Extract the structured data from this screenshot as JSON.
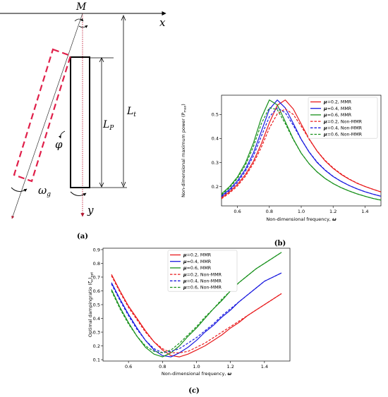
{
  "captions": {
    "a": "(a)",
    "b": "(b)",
    "c": "(c)"
  },
  "diagram": {
    "label_M": "M",
    "label_x": "x",
    "label_y": "y",
    "label_Lt": "L",
    "label_Lt_sub": "t",
    "label_Lp": "L",
    "label_Lp_sub": "P",
    "label_phi": "φ",
    "label_omega": "ω",
    "label_omega_sub": "g",
    "colors": {
      "pendulum": "#e0204a",
      "frame": "#000000",
      "axis": "#c0203a"
    }
  },
  "chart_data": [
    {
      "id": "b",
      "type": "line",
      "xlabel_text": "Non-dimensional frequency, ",
      "xlabel_sym": "ω",
      "ylabel": "Non-dimensional maximum power (P",
      "ylabel_sub": "max",
      "ylabel_end": ")",
      "xlim": [
        0.5,
        1.5
      ],
      "ylim": [
        0.12,
        0.58
      ],
      "xticks": [
        "0.6",
        "0.8",
        "1.0",
        "1.2",
        "1.4"
      ],
      "xtick_values": [
        0.6,
        0.8,
        1.0,
        1.2,
        1.4
      ],
      "yticks": [
        "0.2",
        "0.3",
        "0.4",
        "0.5"
      ],
      "ytick_values": [
        0.2,
        0.3,
        0.4,
        0.5
      ],
      "legend_position": "top-right",
      "x": [
        0.5,
        0.55,
        0.6,
        0.65,
        0.7,
        0.75,
        0.8,
        0.85,
        0.9,
        0.95,
        1.0,
        1.05,
        1.1,
        1.15,
        1.2,
        1.25,
        1.3,
        1.35,
        1.4,
        1.45,
        1.5
      ],
      "series": [
        {
          "name": "=0.2, MMR",
          "prefix": "μ",
          "color": "#e8191b",
          "dash": false,
          "values": [
            0.154,
            0.178,
            0.209,
            0.25,
            0.305,
            0.378,
            0.465,
            0.538,
            0.56,
            0.523,
            0.46,
            0.398,
            0.347,
            0.307,
            0.276,
            0.251,
            0.231,
            0.214,
            0.201,
            0.189,
            0.178
          ]
        },
        {
          "name": "=0.4, MMR",
          "prefix": "μ",
          "color": "#1a1adf",
          "dash": false,
          "values": [
            0.162,
            0.188,
            0.224,
            0.272,
            0.34,
            0.43,
            0.521,
            0.56,
            0.527,
            0.463,
            0.397,
            0.343,
            0.3,
            0.268,
            0.242,
            0.222,
            0.205,
            0.191,
            0.179,
            0.169,
            0.16
          ]
        },
        {
          "name": "=0.6, MMR",
          "prefix": "μ",
          "color": "#17901b",
          "dash": false,
          "values": [
            0.17,
            0.2,
            0.24,
            0.298,
            0.381,
            0.486,
            0.56,
            0.54,
            0.47,
            0.398,
            0.339,
            0.295,
            0.261,
            0.234,
            0.213,
            0.196,
            0.182,
            0.17,
            0.16,
            0.151,
            0.144
          ]
        },
        {
          "name": "=0.2, Non-MMR",
          "prefix": "μ",
          "color": "#e8191b",
          "dash": true,
          "values": [
            0.15,
            0.173,
            0.203,
            0.243,
            0.296,
            0.364,
            0.443,
            0.503,
            0.523,
            0.5,
            0.451,
            0.396,
            0.348,
            0.309,
            0.278,
            0.253,
            0.232,
            0.215,
            0.201,
            0.189,
            0.178
          ]
        },
        {
          "name": "=0.4, Non-MMR",
          "prefix": "μ",
          "color": "#1a1adf",
          "dash": true,
          "values": [
            0.158,
            0.183,
            0.217,
            0.264,
            0.327,
            0.41,
            0.49,
            0.527,
            0.507,
            0.455,
            0.396,
            0.344,
            0.302,
            0.269,
            0.243,
            0.222,
            0.205,
            0.191,
            0.179,
            0.169,
            0.16
          ]
        },
        {
          "name": "=0.6, Non-MMR",
          "prefix": "μ",
          "color": "#17901b",
          "dash": true,
          "values": [
            0.166,
            0.195,
            0.234,
            0.289,
            0.366,
            0.462,
            0.528,
            0.52,
            0.462,
            0.396,
            0.339,
            0.295,
            0.261,
            0.234,
            0.213,
            0.196,
            0.182,
            0.17,
            0.16,
            0.151,
            0.144
          ]
        }
      ]
    },
    {
      "id": "c",
      "type": "line",
      "xlabel_text": "Non-dimensional frequency, ",
      "xlabel_sym": "ω",
      "ylabel": "Optimal dampingratio (ζ",
      "ylabel_sub": "e",
      "ylabel_end": ")",
      "ylabel_sub2": "opt",
      "xlim": [
        0.45,
        1.55
      ],
      "ylim": [
        0.09,
        0.91
      ],
      "xticks": [
        "0.6",
        "0.8",
        "1.0",
        "1.2",
        "1.4"
      ],
      "xtick_values": [
        0.6,
        0.8,
        1.0,
        1.2,
        1.4
      ],
      "yticks": [
        "0.1",
        "0.2",
        "0.3",
        "0.4",
        "0.5",
        "0.6",
        "0.7",
        "0.8",
        "0.9"
      ],
      "ytick_values": [
        0.1,
        0.2,
        0.3,
        0.4,
        0.5,
        0.6,
        0.7,
        0.8,
        0.9
      ],
      "legend_position": "top-left",
      "x": [
        0.5,
        0.55,
        0.6,
        0.65,
        0.7,
        0.75,
        0.8,
        0.85,
        0.9,
        0.95,
        1.0,
        1.05,
        1.1,
        1.15,
        1.2,
        1.25,
        1.3,
        1.35,
        1.4,
        1.45,
        1.5
      ],
      "series": [
        {
          "name": "=0.2, MMR",
          "prefix": "μ",
          "color": "#e8191b",
          "dash": false,
          "values": [
            0.72,
            0.6,
            0.49,
            0.4,
            0.31,
            0.23,
            0.17,
            0.13,
            0.12,
            0.14,
            0.17,
            0.2,
            0.24,
            0.28,
            0.33,
            0.37,
            0.42,
            0.46,
            0.5,
            0.54,
            0.58
          ]
        },
        {
          "name": "=0.4, MMR",
          "prefix": "μ",
          "color": "#1a1adf",
          "dash": false,
          "values": [
            0.66,
            0.54,
            0.43,
            0.33,
            0.24,
            0.17,
            0.13,
            0.12,
            0.15,
            0.19,
            0.24,
            0.3,
            0.35,
            0.41,
            0.46,
            0.52,
            0.57,
            0.62,
            0.67,
            0.7,
            0.73
          ]
        },
        {
          "name": "=0.6, MMR",
          "prefix": "μ",
          "color": "#17901b",
          "dash": false,
          "values": [
            0.61,
            0.48,
            0.37,
            0.27,
            0.19,
            0.14,
            0.12,
            0.15,
            0.2,
            0.27,
            0.33,
            0.4,
            0.47,
            0.53,
            0.6,
            0.66,
            0.71,
            0.76,
            0.8,
            0.84,
            0.88
          ]
        },
        {
          "name": "=0.2, Non-MMR",
          "prefix": "μ",
          "color": "#e8191b",
          "dash": true,
          "values": [
            0.71,
            0.59,
            0.48,
            0.39,
            0.3,
            0.23,
            0.18,
            0.15,
            0.15,
            0.16,
            0.19,
            0.22,
            0.26,
            0.3,
            0.34,
            0.38,
            0.42,
            0.46,
            0.5,
            0.54,
            0.58
          ]
        },
        {
          "name": "=0.4, Non-MMR",
          "prefix": "μ",
          "color": "#1a1adf",
          "dash": true,
          "values": [
            0.65,
            0.53,
            0.42,
            0.32,
            0.24,
            0.18,
            0.15,
            0.16,
            0.18,
            0.22,
            0.26,
            0.31,
            0.36,
            0.42,
            0.47,
            0.52,
            0.57,
            0.62,
            0.67,
            0.7,
            0.73
          ]
        },
        {
          "name": "=0.6, Non-MMR",
          "prefix": "μ",
          "color": "#17901b",
          "dash": true,
          "values": [
            0.6,
            0.47,
            0.36,
            0.27,
            0.2,
            0.16,
            0.15,
            0.17,
            0.22,
            0.28,
            0.34,
            0.41,
            0.47,
            0.54,
            0.6,
            0.66,
            0.71,
            0.76,
            0.8,
            0.84,
            0.88
          ]
        }
      ]
    }
  ]
}
